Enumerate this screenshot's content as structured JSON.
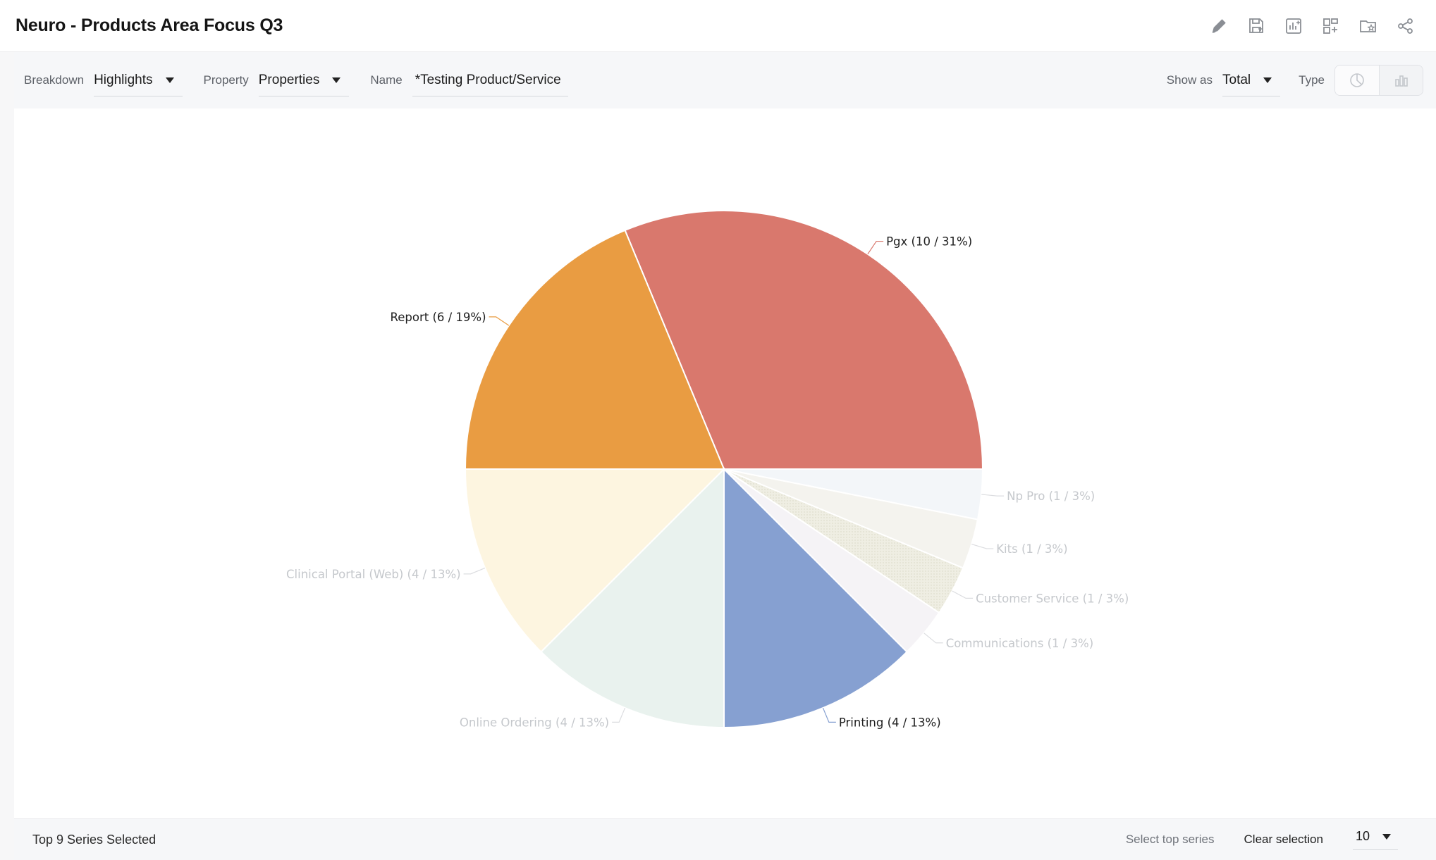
{
  "header": {
    "title": "Neuro - Products Area Focus Q3",
    "tools": [
      {
        "name": "edit-tool",
        "icon": "pencil-icon"
      },
      {
        "name": "save-tool",
        "icon": "save-icon"
      },
      {
        "name": "add-to-report-tool",
        "icon": "chart-add-icon"
      },
      {
        "name": "add-to-dashboard-tool",
        "icon": "dashboard-add-icon"
      },
      {
        "name": "favorite-folder-tool",
        "icon": "folder-star-icon"
      },
      {
        "name": "share-tool",
        "icon": "share-icon"
      }
    ]
  },
  "filters": {
    "breakdown_label": "Breakdown",
    "breakdown_value": "Highlights",
    "property_label": "Property",
    "property_value": "Properties",
    "name_label": "Name",
    "name_value": "*Testing Product/Service",
    "show_as_label": "Show as",
    "show_as_value": "Total",
    "type_label": "Type",
    "type_options": [
      "pie-chart-icon",
      "bar-chart-icon"
    ]
  },
  "chart_data": {
    "type": "pie",
    "title": "",
    "slices": [
      {
        "label": "Pgx (10 / 31%)",
        "value": 10,
        "color": "#d9786d",
        "label_color": "#1f1f1f"
      },
      {
        "label": "Np Pro (1 / 3%)",
        "value": 1,
        "color": "#f3f6f9",
        "label_color": "#c5c8cc"
      },
      {
        "label": "Kits (1 / 3%)",
        "value": 1,
        "color": "#f4f3ee",
        "label_color": "#c5c8cc"
      },
      {
        "label": "Customer Service (1 / 3%)",
        "value": 1,
        "color": "#eeecdf",
        "label_color": "#c5c8cc"
      },
      {
        "label": "Communications (1 / 3%)",
        "value": 1,
        "color": "#f5f3f6",
        "label_color": "#c5c8cc"
      },
      {
        "label": "Printing (4 / 13%)",
        "value": 4,
        "color": "#86a0d1",
        "label_color": "#1f1f1f"
      },
      {
        "label": "Online Ordering (4 / 13%)",
        "value": 4,
        "color": "#e9f2ee",
        "label_color": "#c5c8cc"
      },
      {
        "label": "Clinical Portal (Web) (4 / 13%)",
        "value": 4,
        "color": "#fdf5e0",
        "label_color": "#c5c8cc"
      },
      {
        "label": "Report (6 / 19%)",
        "value": 6,
        "color": "#e99c42",
        "label_color": "#1f1f1f"
      }
    ]
  },
  "footer": {
    "title": "Top 9 Series Selected",
    "select_top_label": "Select top series",
    "clear_label": "Clear selection",
    "count_value": "10"
  }
}
